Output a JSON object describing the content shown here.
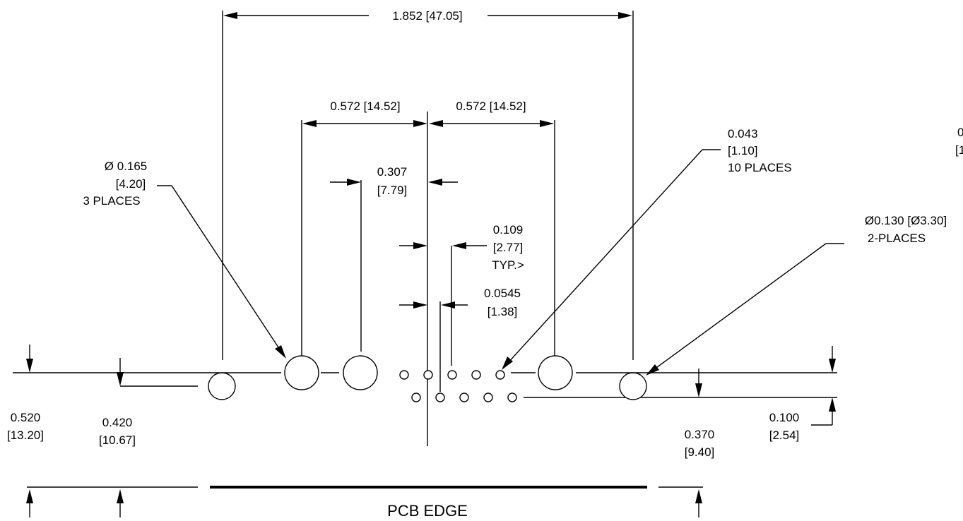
{
  "dimensions": {
    "overall_width": "1.852 [47.05]",
    "left_spacing": "0.572 [14.52]",
    "right_spacing": "0.572 [14.52]",
    "mount_offset": {
      "inch": "0.307",
      "mm": "[7.79]"
    },
    "pin_pitch": {
      "inch": "0.109",
      "mm": "[2.77]",
      "note": "TYP.>"
    },
    "pin_half_pitch": {
      "inch": "0.0545",
      "mm": "[1.38]"
    },
    "large_hole": {
      "inch": "Ø 0.165",
      "mm": "[4.20]",
      "qty": "3 PLACES"
    },
    "small_hole": {
      "inch": "0.043",
      "mm": "[1.10]",
      "qty": "10 PLACES"
    },
    "locating_hole": {
      "size": "Ø0.130 [Ø3.30]",
      "qty": "2-PLACES"
    },
    "edge_to_top_row": {
      "inch": "0.520",
      "mm": "[13.20]"
    },
    "edge_to_post": {
      "inch": "0.420",
      "mm": "[10.67]"
    },
    "edge_to_bottom_row": {
      "inch": "0.370",
      "mm": "[9.40]"
    },
    "row_spacing": {
      "inch": "0.100",
      "mm": "[2.54]"
    }
  },
  "truncated_right_label": {
    "line1": "0",
    "line2": "[1"
  },
  "pcb_edge_label": "PCB EDGE"
}
